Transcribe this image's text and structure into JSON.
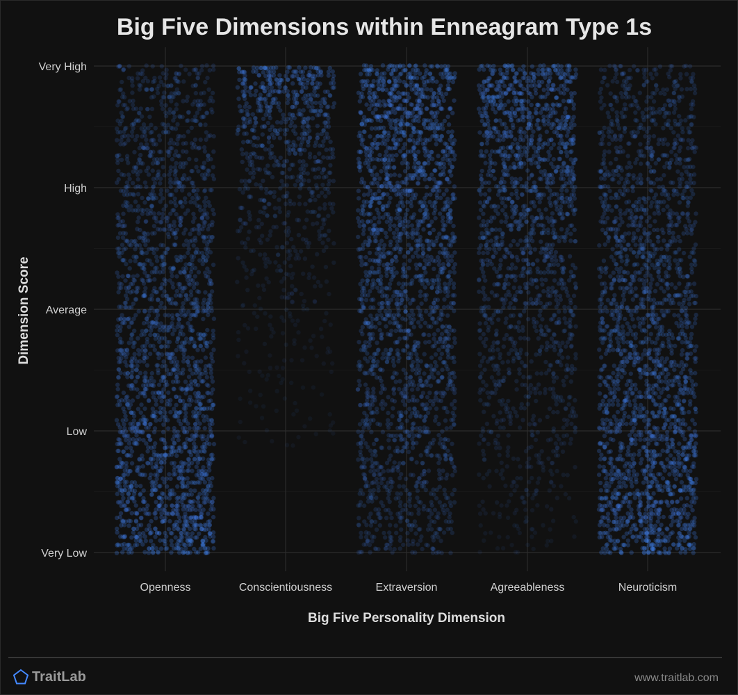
{
  "chart_data": {
    "type": "scatter",
    "title": "Big Five Dimensions within Enneagram Type 1s",
    "xlabel": "Big Five Personality Dimension",
    "ylabel": "Dimension Score",
    "categories": [
      "Openness",
      "Conscientiousness",
      "Extraversion",
      "Agreeableness",
      "Neuroticism"
    ],
    "y_tick_labels": [
      "Very Low",
      "Low",
      "Average",
      "High",
      "Very High"
    ],
    "ylim": [
      0,
      100
    ],
    "grid": true,
    "point_color": "#4488ff",
    "background": "#111111",
    "series": [
      {
        "distribution": {
          "min": 0,
          "max": 100,
          "density_low_end": "highest",
          "density_high_end": "moderate"
        }
      },
      {
        "distribution": {
          "min": 22,
          "max": 100,
          "density_low_end": "sparse",
          "density_high_end": "highest"
        }
      },
      {
        "distribution": {
          "min": 0,
          "max": 100,
          "density_low_end": "moderate",
          "density_high_end": "highest"
        }
      },
      {
        "distribution": {
          "min": 0,
          "max": 100,
          "density_low_end": "sparse",
          "density_high_end": "highest"
        }
      },
      {
        "distribution": {
          "min": 0,
          "max": 100,
          "density_low_end": "highest",
          "density_high_end": "moderate"
        }
      }
    ]
  },
  "footer": {
    "brand": "TraitLab",
    "brand_icon": "pentagon-icon",
    "brand_color": "#4488ff",
    "website": "www.traitlab.com"
  }
}
